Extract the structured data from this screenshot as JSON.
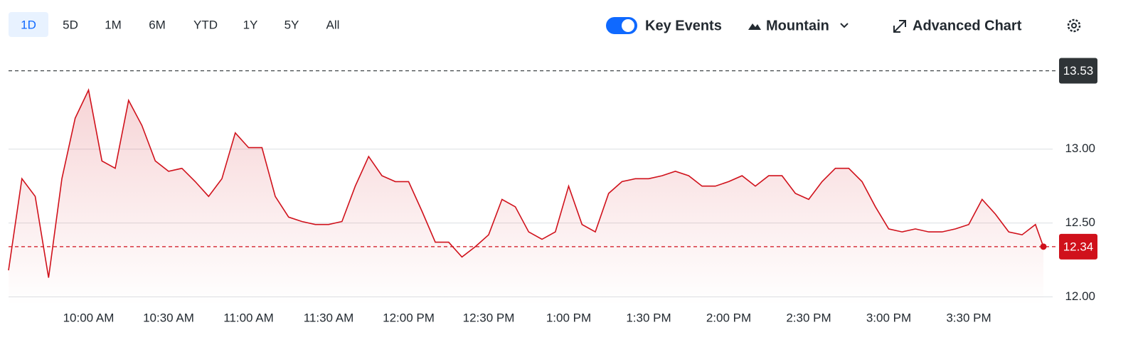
{
  "toolbar": {
    "ranges": [
      "1D",
      "5D",
      "1M",
      "6M",
      "YTD",
      "1Y",
      "5Y",
      "All"
    ],
    "key_events": "Key Events",
    "chart_style": "Mountain",
    "advanced": "Advanced Chart"
  },
  "chart_data": {
    "type": "line",
    "color": "#d0111b",
    "x": [
      "9:30 AM",
      "9:35 AM",
      "9:40 AM",
      "9:45 AM",
      "9:50 AM",
      "9:55 AM",
      "10:00 AM",
      "10:05 AM",
      "10:10 AM",
      "10:15 AM",
      "10:20 AM",
      "10:25 AM",
      "10:30 AM",
      "10:35 AM",
      "10:40 AM",
      "10:45 AM",
      "10:50 AM",
      "10:55 AM",
      "11:00 AM",
      "11:05 AM",
      "11:10 AM",
      "11:15 AM",
      "11:20 AM",
      "11:25 AM",
      "11:30 AM",
      "11:35 AM",
      "11:40 AM",
      "11:45 AM",
      "11:50 AM",
      "11:55 AM",
      "12:00 PM",
      "12:05 PM",
      "12:10 PM",
      "12:15 PM",
      "12:20 PM",
      "12:25 PM",
      "12:30 PM",
      "12:35 PM",
      "12:40 PM",
      "12:45 PM",
      "12:50 PM",
      "12:55 PM",
      "1:00 PM",
      "1:05 PM",
      "1:10 PM",
      "1:15 PM",
      "1:20 PM",
      "1:25 PM",
      "1:30 PM",
      "1:35 PM",
      "1:40 PM",
      "1:45 PM",
      "1:50 PM",
      "1:55 PM",
      "2:00 PM",
      "2:05 PM",
      "2:10 PM",
      "2:15 PM",
      "2:20 PM",
      "2:25 PM",
      "2:30 PM",
      "2:35 PM",
      "2:40 PM",
      "2:45 PM",
      "2:50 PM",
      "2:55 PM",
      "3:00 PM",
      "3:05 PM",
      "3:10 PM",
      "3:15 PM",
      "3:20 PM",
      "3:25 PM",
      "3:30 PM",
      "3:35 PM",
      "3:40 PM",
      "3:45 PM",
      "3:50 PM",
      "3:55 PM",
      "3:58 PM"
    ],
    "values": [
      12.18,
      12.8,
      12.68,
      12.13,
      12.8,
      13.21,
      13.4,
      12.92,
      12.87,
      13.33,
      13.16,
      12.92,
      12.85,
      12.87,
      12.78,
      12.68,
      12.8,
      13.11,
      13.01,
      13.01,
      12.68,
      12.54,
      12.51,
      12.49,
      12.49,
      12.51,
      12.75,
      12.95,
      12.82,
      12.78,
      12.78,
      12.58,
      12.37,
      12.37,
      12.27,
      12.34,
      12.42,
      12.66,
      12.61,
      12.44,
      12.39,
      12.44,
      12.75,
      12.49,
      12.44,
      12.7,
      12.78,
      12.8,
      12.8,
      12.82,
      12.85,
      12.82,
      12.75,
      12.75,
      12.78,
      12.82,
      12.75,
      12.82,
      12.82,
      12.7,
      12.66,
      12.78,
      12.87,
      12.87,
      12.78,
      12.61,
      12.46,
      12.44,
      12.46,
      12.44,
      12.44,
      12.46,
      12.49,
      12.66,
      12.56,
      12.44,
      12.42,
      12.49,
      12.34
    ],
    "xlim": [
      "9:30 AM",
      "4:00 PM"
    ],
    "xticks": [
      "10:00 AM",
      "10:30 AM",
      "11:00 AM",
      "11:30 AM",
      "12:00 PM",
      "12:30 PM",
      "1:00 PM",
      "1:30 PM",
      "2:00 PM",
      "2:30 PM",
      "3:00 PM",
      "3:30 PM"
    ],
    "ylim": [
      11.94,
      13.6
    ],
    "yticks": [
      {
        "value": 12,
        "label": "12.00"
      },
      {
        "value": 12.5,
        "label": "12.50"
      },
      {
        "value": 13,
        "label": "13.00"
      }
    ],
    "grid": true,
    "reference_lines": [
      {
        "value": 13.53,
        "color": "#2f3437"
      },
      {
        "value": 12.34,
        "color": "#d0111b"
      }
    ]
  }
}
